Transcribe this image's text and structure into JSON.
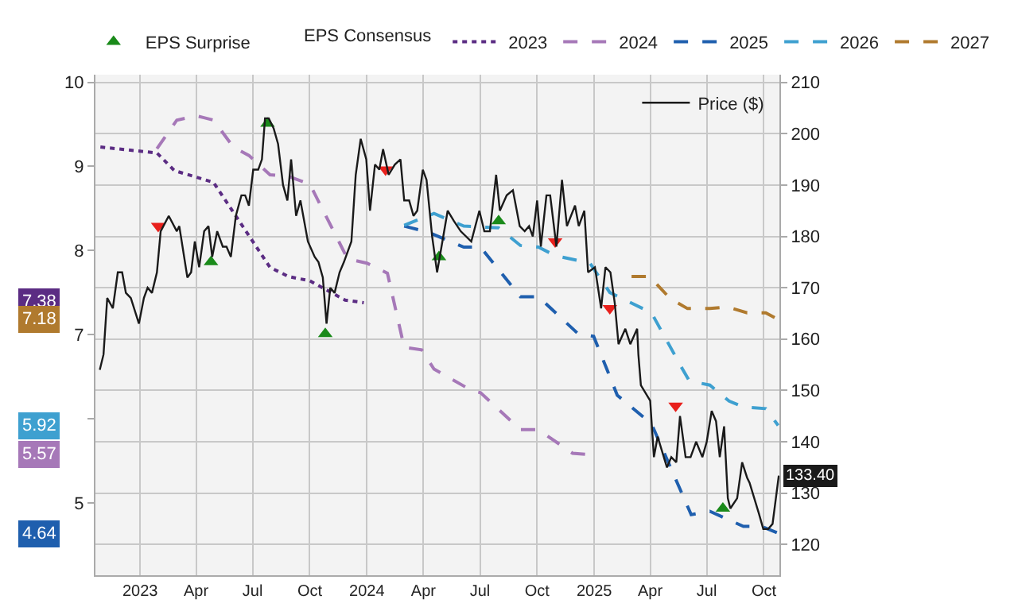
{
  "chart_data": {
    "type": "line",
    "legend": "top",
    "legend_title": "EPS Consensus",
    "grid": true,
    "xlim": [
      "2022-10-21",
      "2025-10-26"
    ],
    "xticks": [
      {
        "value": "2023-01-01",
        "label": "2023"
      },
      {
        "value": "2023-04-01",
        "label": "Apr"
      },
      {
        "value": "2023-07-01",
        "label": "Jul"
      },
      {
        "value": "2023-10-01",
        "label": "Oct"
      },
      {
        "value": "2024-01-01",
        "label": "2024"
      },
      {
        "value": "2024-04-01",
        "label": "Apr"
      },
      {
        "value": "2024-07-01",
        "label": "Jul"
      },
      {
        "value": "2024-10-01",
        "label": "Oct"
      },
      {
        "value": "2025-01-01",
        "label": "2025"
      },
      {
        "value": "2025-04-01",
        "label": "Apr"
      },
      {
        "value": "2025-07-01",
        "label": "Jul"
      },
      {
        "value": "2025-10-01",
        "label": "Oct"
      }
    ],
    "ylim": [
      4.14,
      10.09
    ],
    "yticks": [
      5,
      {
        "value": 6,
        "label": null
      },
      7,
      8,
      9,
      10
    ],
    "y2lim": [
      114,
      211.5
    ],
    "annotations": [
      "7.38",
      "5.57",
      "4.64",
      "5.92",
      "7.18"
    ],
    "y2ticks": [
      120,
      130,
      140,
      150,
      160,
      170,
      180,
      190,
      200,
      210
    ],
    "series": [
      {
        "type": "scatter",
        "name": "EPS Surprise",
        "color": "#1a8a1a",
        "marker": "triangle-up",
        "axis": "y2",
        "x": [
          "2023-04-25",
          "2023-07-25",
          "2023-10-26",
          "2024-04-26",
          "2024-07-31",
          "2025-07-27"
        ],
        "values": [
          175,
          202,
          161,
          176,
          183,
          127
        ]
      },
      {
        "type": "scatter",
        "color": "#e8201c",
        "marker": "triangle-down",
        "axis": "y2",
        "x": [
          "2023-01-30",
          "2024-01-31",
          "2024-10-30",
          "2025-01-26",
          "2025-05-12"
        ],
        "values": [
          182,
          193,
          179,
          166,
          147
        ]
      },
      {
        "name": "2023",
        "color": "#5b2c83",
        "line_style": "dotted",
        "x": [
          "2022-10-29",
          "2023-01-28",
          "2023-02-25",
          "2023-04-29",
          "2023-07-29",
          "2023-08-28",
          "2023-10-01",
          "2023-11-27",
          "2023-12-27"
        ],
        "values": [
          9.23,
          9.16,
          8.95,
          8.81,
          7.8,
          7.69,
          7.64,
          7.41,
          7.38
        ]
      },
      {
        "name": "2024",
        "color": "#a678b8",
        "line_style": "dashed",
        "x": [
          "2023-01-28",
          "2023-03-01",
          "2023-04-02",
          "2023-04-29",
          "2023-05-31",
          "2023-06-25",
          "2023-07-29",
          "2023-08-28",
          "2023-10-01",
          "2023-12-01",
          "2024-01-01",
          "2024-02-03",
          "2024-03-01",
          "2024-03-29",
          "2024-04-18",
          "2024-06-19",
          "2024-07-02",
          "2024-09-04",
          "2024-10-03",
          "2024-11-27",
          "2024-12-31"
        ],
        "values": [
          9.21,
          9.55,
          9.6,
          9.55,
          9.23,
          9.13,
          8.9,
          8.88,
          8.79,
          7.9,
          7.85,
          7.73,
          6.85,
          6.82,
          6.59,
          6.33,
          6.31,
          5.87,
          5.87,
          5.59,
          5.57
        ]
      },
      {
        "name": "2025",
        "color": "#1f5fae",
        "line_style": "dashed",
        "x": [
          "2024-03-01",
          "2024-04-08",
          "2024-06-05",
          "2024-07-02",
          "2024-09-04",
          "2024-10-03",
          "2024-12-06",
          "2024-12-31",
          "2025-02-07",
          "2025-04-03",
          "2025-06-06",
          "2025-07-06",
          "2025-08-29",
          "2025-09-27",
          "2025-10-24"
        ],
        "values": [
          8.29,
          8.22,
          8.04,
          8.04,
          7.45,
          7.45,
          7.01,
          6.98,
          6.28,
          5.94,
          4.86,
          4.9,
          4.72,
          4.72,
          4.64
        ]
      },
      {
        "name": "2026",
        "color": "#3ea0d0",
        "line_style": "dashed",
        "x": [
          "2024-03-01",
          "2024-04-18",
          "2024-06-05",
          "2024-07-31",
          "2024-09-04",
          "2024-10-03",
          "2024-10-30",
          "2024-12-25",
          "2025-01-26",
          "2025-04-03",
          "2025-05-23",
          "2025-06-03",
          "2025-07-06",
          "2025-08-06",
          "2025-08-29",
          "2025-10-04",
          "2025-10-24"
        ],
        "values": [
          8.3,
          8.44,
          8.29,
          8.27,
          8.06,
          8.04,
          7.94,
          7.85,
          7.5,
          7.26,
          6.59,
          6.45,
          6.4,
          6.21,
          6.14,
          6.12,
          5.92
        ]
      },
      {
        "name": "2027",
        "color": "#b07a2e",
        "line_style": "dashed",
        "x": [
          "2025-03-02",
          "2025-03-31",
          "2025-05-03",
          "2025-05-31",
          "2025-07-06",
          "2025-08-03",
          "2025-09-04",
          "2025-10-04",
          "2025-10-24"
        ],
        "values": [
          7.69,
          7.69,
          7.43,
          7.31,
          7.31,
          7.33,
          7.26,
          7.26,
          7.18
        ]
      },
      {
        "name": "Price ($)",
        "color": "#1a1a1a",
        "line_style": "solid",
        "axis": "y2",
        "x": [
          "2022-10-28",
          "2022-11-03",
          "2022-11-09",
          "2022-11-18",
          "2022-11-26",
          "2022-12-03",
          "2022-12-09",
          "2022-12-17",
          "2022-12-30",
          "2023-01-07",
          "2023-01-13",
          "2023-01-20",
          "2023-01-28",
          "2023-02-03",
          "2023-02-16",
          "2023-03-01",
          "2023-03-05",
          "2023-03-18",
          "2023-03-24",
          "2023-03-30",
          "2023-04-06",
          "2023-04-14",
          "2023-04-21",
          "2023-04-27",
          "2023-05-05",
          "2023-05-14",
          "2023-05-20",
          "2023-05-27",
          "2023-06-04",
          "2023-06-13",
          "2023-06-19",
          "2023-06-25",
          "2023-07-02",
          "2023-07-10",
          "2023-07-16",
          "2023-07-21",
          "2023-07-27",
          "2023-08-04",
          "2023-08-11",
          "2023-08-19",
          "2023-08-26",
          "2023-09-01",
          "2023-09-09",
          "2023-09-16",
          "2023-09-28",
          "2023-10-09",
          "2023-10-15",
          "2023-10-22",
          "2023-10-28",
          "2023-11-03",
          "2023-11-10",
          "2023-11-18",
          "2023-11-25",
          "2023-12-07",
          "2023-12-14",
          "2023-12-22",
          "2023-12-31",
          "2024-01-06",
          "2024-01-14",
          "2024-01-21",
          "2024-01-27",
          "2024-02-05",
          "2024-02-15",
          "2024-02-24",
          "2024-03-01",
          "2024-03-09",
          "2024-03-16",
          "2024-03-22",
          "2024-03-31",
          "2024-04-06",
          "2024-04-15",
          "2024-04-23",
          "2024-05-10",
          "2024-05-20",
          "2024-05-31",
          "2024-06-17",
          "2024-06-30",
          "2024-07-08",
          "2024-07-17",
          "2024-07-27",
          "2024-08-02",
          "2024-08-13",
          "2024-08-23",
          "2024-09-03",
          "2024-09-11",
          "2024-09-18",
          "2024-09-24",
          "2024-10-01",
          "2024-10-07",
          "2024-10-16",
          "2024-10-22",
          "2024-11-01",
          "2024-11-10",
          "2024-11-18",
          "2024-12-01",
          "2024-12-07",
          "2024-12-16",
          "2024-12-22",
          "2025-01-02",
          "2025-01-12",
          "2025-01-19",
          "2025-01-27",
          "2025-02-03",
          "2025-02-09",
          "2025-02-20",
          "2025-02-28",
          "2025-03-11",
          "2025-03-13",
          "2025-03-17",
          "2025-04-01",
          "2025-04-07",
          "2025-04-13",
          "2025-04-28",
          "2025-05-05",
          "2025-05-13",
          "2025-05-19",
          "2025-05-28",
          "2025-06-05",
          "2025-06-14",
          "2025-06-24",
          "2025-07-01",
          "2025-07-09",
          "2025-07-16",
          "2025-07-22",
          "2025-07-29",
          "2025-08-04",
          "2025-08-08",
          "2025-08-19",
          "2025-08-27",
          "2025-09-04",
          "2025-09-08",
          "2025-09-23",
          "2025-09-30",
          "2025-10-08",
          "2025-10-15",
          "2025-10-25"
        ],
        "values": [
          154,
          157,
          168,
          166,
          173,
          173,
          169,
          168,
          163,
          168,
          170,
          169,
          173,
          181,
          184,
          181,
          182,
          172,
          173,
          179,
          174,
          181,
          182,
          176,
          181,
          178,
          178,
          176,
          184,
          188,
          188,
          186,
          193,
          193,
          195,
          203,
          203,
          201,
          198,
          190,
          187,
          195,
          184,
          187,
          179,
          176,
          175,
          172,
          163,
          170,
          169,
          173,
          175,
          179,
          192,
          199,
          195,
          185,
          194,
          193,
          197,
          192,
          194,
          195,
          187,
          187,
          184,
          185,
          193,
          191,
          180,
          173,
          185,
          183,
          181,
          179,
          185,
          181,
          181,
          192,
          185,
          188,
          189,
          182,
          181,
          182,
          180,
          187,
          178,
          188,
          188,
          178,
          191,
          182,
          186,
          182,
          185,
          173,
          174,
          166,
          174,
          173,
          167,
          159,
          162,
          159,
          162,
          157,
          151,
          148,
          137,
          141,
          135,
          137,
          136,
          145,
          137,
          137,
          140,
          137,
          140,
          146,
          144,
          137,
          143,
          129,
          127,
          129,
          136,
          133,
          132,
          126,
          123,
          123,
          124,
          133.4
        ],
        "value_labels": [
          null,
          null,
          null,
          null,
          null,
          null,
          null,
          null,
          null,
          null,
          null,
          null,
          null,
          null,
          null,
          null,
          null,
          null,
          null,
          null,
          null,
          null,
          null,
          null,
          null,
          null,
          null,
          null,
          null,
          null,
          null,
          null,
          null,
          null,
          null,
          null,
          null,
          null,
          null,
          null,
          null,
          null,
          null,
          null,
          null,
          null,
          null,
          null,
          null,
          null,
          null,
          null,
          null,
          null,
          null,
          null,
          null,
          null,
          null,
          null,
          null,
          null,
          null,
          null,
          null,
          null,
          null,
          null,
          null,
          null,
          null,
          null,
          null,
          null,
          null,
          null,
          null,
          null,
          null,
          null,
          null,
          null,
          null,
          null,
          null,
          null,
          null,
          null,
          null,
          null,
          null,
          null,
          null,
          null,
          null,
          null,
          null,
          null,
          null,
          null,
          null,
          null,
          null,
          null,
          null,
          null,
          null,
          null,
          null,
          null,
          null,
          null,
          null,
          null,
          null,
          null,
          null,
          null,
          null,
          null,
          null,
          null,
          null,
          null,
          null,
          null,
          null,
          null,
          null,
          null,
          null,
          null,
          null,
          null,
          null,
          "133.40"
        ]
      }
    ]
  }
}
